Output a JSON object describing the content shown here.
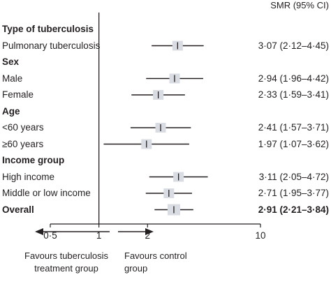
{
  "header": "SMR (95% CI)",
  "chart_data": {
    "type": "forest",
    "scale": "log",
    "xlim": [
      0.5,
      10
    ],
    "x_ticks": [
      0.5,
      1,
      2,
      10
    ],
    "x_tick_labels": [
      "0·5",
      "1",
      "2",
      "10"
    ],
    "reference_line": 1,
    "rows": [
      {
        "label": "Type of tuberculosis",
        "kind": "group"
      },
      {
        "label": "Pulmonary tuberculosis",
        "kind": "item",
        "est": 3.07,
        "lo": 2.12,
        "hi": 4.45,
        "ci_text": "3·07 (2·12–4·45)"
      },
      {
        "label": "Sex",
        "kind": "group"
      },
      {
        "label": "Male",
        "kind": "item",
        "est": 2.94,
        "lo": 1.96,
        "hi": 4.42,
        "ci_text": "2·94 (1·96–4·42)"
      },
      {
        "label": "Female",
        "kind": "item",
        "est": 2.33,
        "lo": 1.59,
        "hi": 3.41,
        "ci_text": "2·33 (1·59–3·41)"
      },
      {
        "label": "Age",
        "kind": "group"
      },
      {
        "label": "<60 years",
        "kind": "item",
        "est": 2.41,
        "lo": 1.57,
        "hi": 3.71,
        "ci_text": "2·41 (1·57–3·71)"
      },
      {
        "label": "≥60 years",
        "kind": "item",
        "est": 1.97,
        "lo": 1.07,
        "hi": 3.62,
        "ci_text": "1·97 (1·07–3·62)"
      },
      {
        "label": "Income group",
        "kind": "group"
      },
      {
        "label": "High income",
        "kind": "item",
        "est": 3.11,
        "lo": 2.05,
        "hi": 4.72,
        "ci_text": "3·11 (2·05–4·72)"
      },
      {
        "label": "Middle or low income",
        "kind": "item",
        "est": 2.71,
        "lo": 1.95,
        "hi": 3.77,
        "ci_text": "2·71 (1·95–3·77)"
      },
      {
        "label": "Overall",
        "kind": "overall",
        "est": 2.91,
        "lo": 2.21,
        "hi": 3.84,
        "ci_text": "2·91 (2·21–3·84)"
      }
    ],
    "favours_left": "Favours tuberculosis treatment group",
    "favours_right": "Favours control group",
    "colors": {
      "ink": "#231f20",
      "box": "#d9dde3"
    }
  }
}
